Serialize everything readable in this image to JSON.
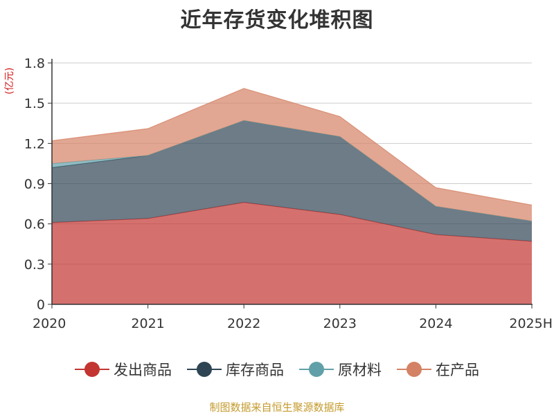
{
  "chart_data": {
    "type": "area",
    "stacked": true,
    "title": "近年存货变化堆积图",
    "unit_label": "(亿元)",
    "categories": [
      "2020",
      "2021",
      "2022",
      "2023",
      "2024",
      "2025H"
    ],
    "y_ticks": [
      "0",
      "0.3",
      "0.6",
      "0.9",
      "1.2",
      "1.5",
      "1.8"
    ],
    "ylim": [
      0,
      1.8
    ],
    "grid": true,
    "legend_position": "bottom",
    "series": [
      {
        "name": "发出商品",
        "color": "#c23531",
        "values": [
          0.61,
          0.64,
          0.76,
          0.67,
          0.52,
          0.47
        ]
      },
      {
        "name": "库存商品",
        "color": "#2f4554",
        "values": [
          0.41,
          0.47,
          0.61,
          0.58,
          0.21,
          0.15
        ]
      },
      {
        "name": "原材料",
        "color": "#61a0a8",
        "values": [
          0.03,
          0.0,
          0.0,
          0.0,
          0.0,
          0.0
        ]
      },
      {
        "name": "在产品",
        "color": "#d48265",
        "values": [
          0.17,
          0.2,
          0.24,
          0.15,
          0.14,
          0.12
        ]
      }
    ]
  },
  "source_note": "制图数据来自恒生聚源数据库"
}
